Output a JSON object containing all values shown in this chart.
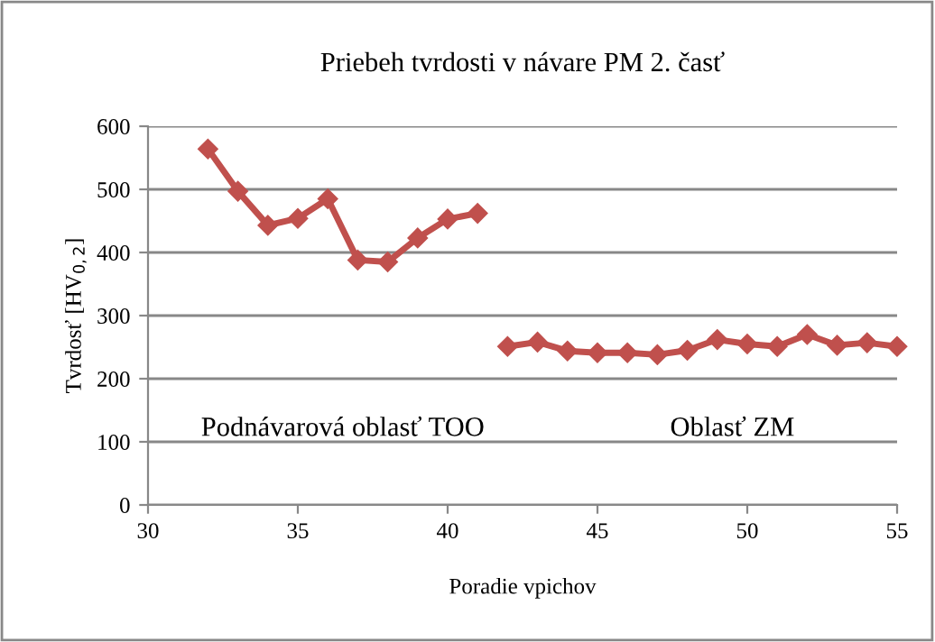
{
  "chart_data": {
    "type": "line",
    "title": "Priebeh tvrdosti v návare PM 2. časť",
    "xlabel": "Poradie vpichov",
    "ylabel": "Tvrdosť [HV$_{0,2}$]",
    "series": [
      {
        "color": "#c0504d",
        "x": [
          32,
          33,
          34,
          35,
          36,
          37,
          38,
          39,
          40,
          41
        ],
        "values": [
          564,
          497,
          443,
          454,
          485,
          388,
          385,
          423,
          453,
          462
        ]
      },
      {
        "color": "#c0504d",
        "x": [
          42,
          43,
          44,
          45,
          46,
          47,
          48,
          49,
          50,
          51,
          52,
          53,
          54,
          55
        ],
        "values": [
          251,
          258,
          244,
          241,
          241,
          238,
          245,
          262,
          255,
          251,
          270,
          253,
          257,
          251
        ]
      }
    ],
    "annotations": [
      "Podnávarová oblasť TOO",
      "Oblasť ZM"
    ],
    "xlim": [
      30,
      55
    ],
    "xticks": [
      30,
      35,
      40,
      45,
      50,
      55
    ],
    "ylim": [
      0,
      600
    ],
    "yticks": [
      0,
      100,
      200,
      300,
      400,
      500,
      600
    ],
    "grid": "y",
    "marker": "diamond",
    "line_style": "solid",
    "legend": false
  }
}
